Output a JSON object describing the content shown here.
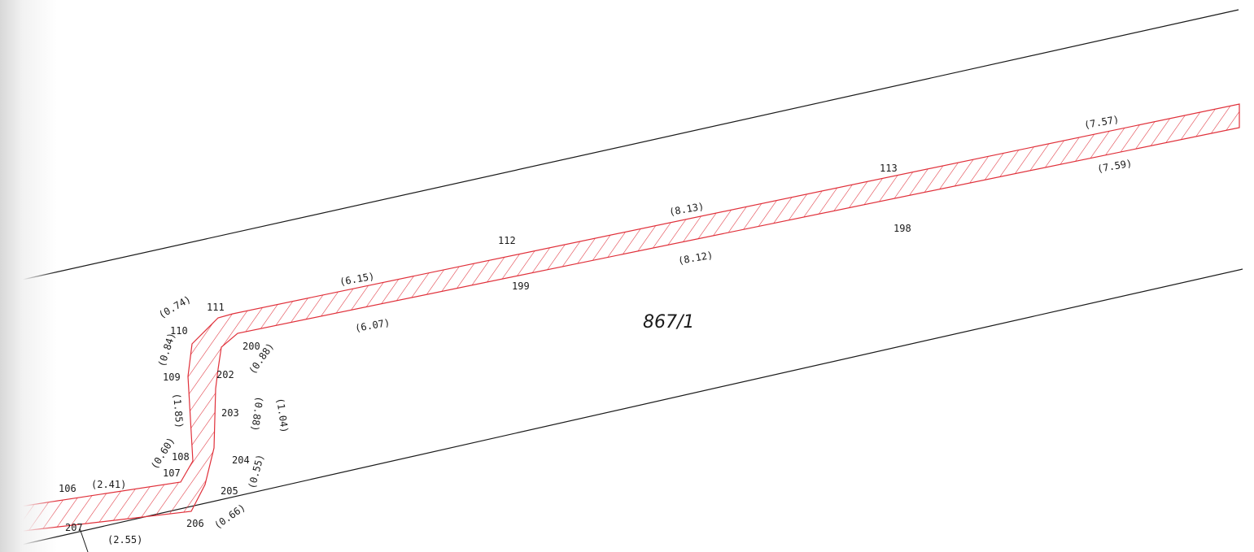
{
  "parcel": {
    "label": "867/1"
  },
  "point_labels": [
    {
      "id": "p106",
      "text": "106"
    },
    {
      "id": "p107",
      "text": "107"
    },
    {
      "id": "p108",
      "text": "108"
    },
    {
      "id": "p109",
      "text": "109"
    },
    {
      "id": "p110",
      "text": "110"
    },
    {
      "id": "p111",
      "text": "111"
    },
    {
      "id": "p112",
      "text": "112"
    },
    {
      "id": "p113",
      "text": "113"
    },
    {
      "id": "p198",
      "text": "198"
    },
    {
      "id": "p199",
      "text": "199"
    },
    {
      "id": "p200",
      "text": "200"
    },
    {
      "id": "p202",
      "text": "202"
    },
    {
      "id": "p203",
      "text": "203"
    },
    {
      "id": "p204",
      "text": "204"
    },
    {
      "id": "p205",
      "text": "205"
    },
    {
      "id": "p206",
      "text": "206"
    },
    {
      "id": "p207",
      "text": "207"
    }
  ],
  "distance_labels": [
    {
      "id": "d241",
      "text": "(2.41)"
    },
    {
      "id": "d060",
      "text": "(0.60)"
    },
    {
      "id": "d185",
      "text": "(1.85)"
    },
    {
      "id": "d084",
      "text": "(0.84)"
    },
    {
      "id": "d074",
      "text": "(0.74)"
    },
    {
      "id": "d615",
      "text": "(6.15)"
    },
    {
      "id": "d813",
      "text": "(8.13)"
    },
    {
      "id": "d757",
      "text": "(7.57)"
    },
    {
      "id": "d759",
      "text": "(7.59)"
    },
    {
      "id": "d812",
      "text": "(8.12)"
    },
    {
      "id": "d607",
      "text": "(6.07)"
    },
    {
      "id": "d088a",
      "text": "(0.88)"
    },
    {
      "id": "d088b",
      "text": "(0.88)"
    },
    {
      "id": "d104",
      "text": "(1.04)"
    },
    {
      "id": "d055",
      "text": "(0.55)"
    },
    {
      "id": "d066",
      "text": "(0.66)"
    },
    {
      "id": "d255",
      "text": "(2.55)"
    }
  ],
  "colors": {
    "boundary_line": "#1a1a1a",
    "easement_hatch": "#e0303a",
    "background": "#ffffff"
  }
}
